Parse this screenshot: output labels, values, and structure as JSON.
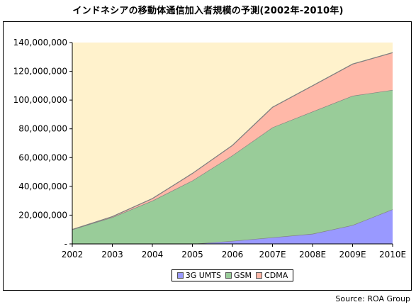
{
  "chart_data": {
    "type": "area",
    "stacked": true,
    "title": "インドネシアの移動体通信加入者規模の予測(2002年-2010年)",
    "categories": [
      "2002",
      "2003",
      "2004",
      "2005",
      "2006",
      "2007E",
      "2008E",
      "2009E",
      "2010E"
    ],
    "series": [
      {
        "name": "3G UMTS",
        "color": "#9999ff",
        "values": [
          0,
          0,
          0,
          0,
          2000000,
          4500000,
          7000000,
          13000000,
          24000000
        ]
      },
      {
        "name": "GSM",
        "color": "#99cc99",
        "values": [
          10000000,
          18500000,
          30000000,
          44000000,
          59500000,
          76500000,
          85000000,
          90000000,
          83000000
        ]
      },
      {
        "name": "CDMA",
        "color": "#ffb8a8",
        "values": [
          0,
          500000,
          1500000,
          5000000,
          7000000,
          14000000,
          18000000,
          22000000,
          26000000
        ]
      }
    ],
    "ylim": [
      0,
      140000000
    ],
    "yticks": [
      0,
      20000000,
      40000000,
      60000000,
      80000000,
      100000000,
      120000000,
      140000000
    ],
    "ytick_labels": [
      "-",
      "20,000,000",
      "40,000,000",
      "60,000,000",
      "80,000,000",
      "100,000,000",
      "120,000,000",
      "140,000,000"
    ],
    "xlabel": "",
    "ylabel": "",
    "grid": false,
    "legend_position": "bottom",
    "plot_background": "#fff2cc"
  },
  "source": "Source: ROA Group"
}
